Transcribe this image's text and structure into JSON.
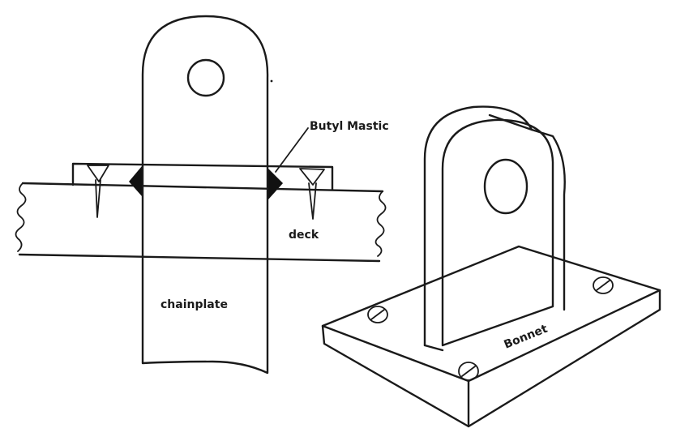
{
  "diagram": {
    "labels": {
      "butyl_mastic": "Butyl Mastic",
      "deck": "deck",
      "chainplate": "chainplate",
      "bonnet": "Bonnet"
    },
    "colors": {
      "ink": "#1a1a1a",
      "background": "#ffffff"
    }
  }
}
